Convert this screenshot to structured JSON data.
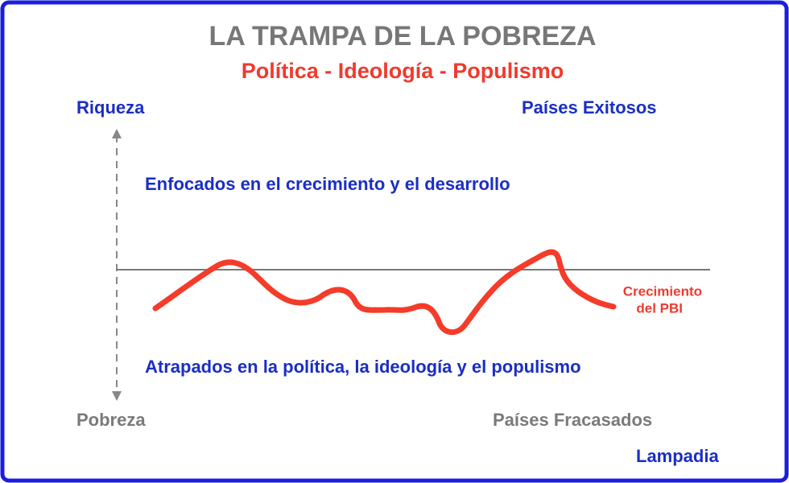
{
  "header": {
    "title": "LA TRAMPA DE LA POBREZA",
    "subtitle": "Política - Ideología - Populismo"
  },
  "axis": {
    "top": "Riqueza",
    "bottom": "Pobreza"
  },
  "corners": {
    "top_right": "Países Exitosos",
    "bottom_right": "Países Fracasados"
  },
  "regions": {
    "upper": "Enfocados en el crecimiento y el desarrollo",
    "lower": "Atrapados en la política, la ideología y el populismo"
  },
  "curve_label": [
    "Crecimiento",
    "del PBI"
  ],
  "source": "Lampadia"
}
